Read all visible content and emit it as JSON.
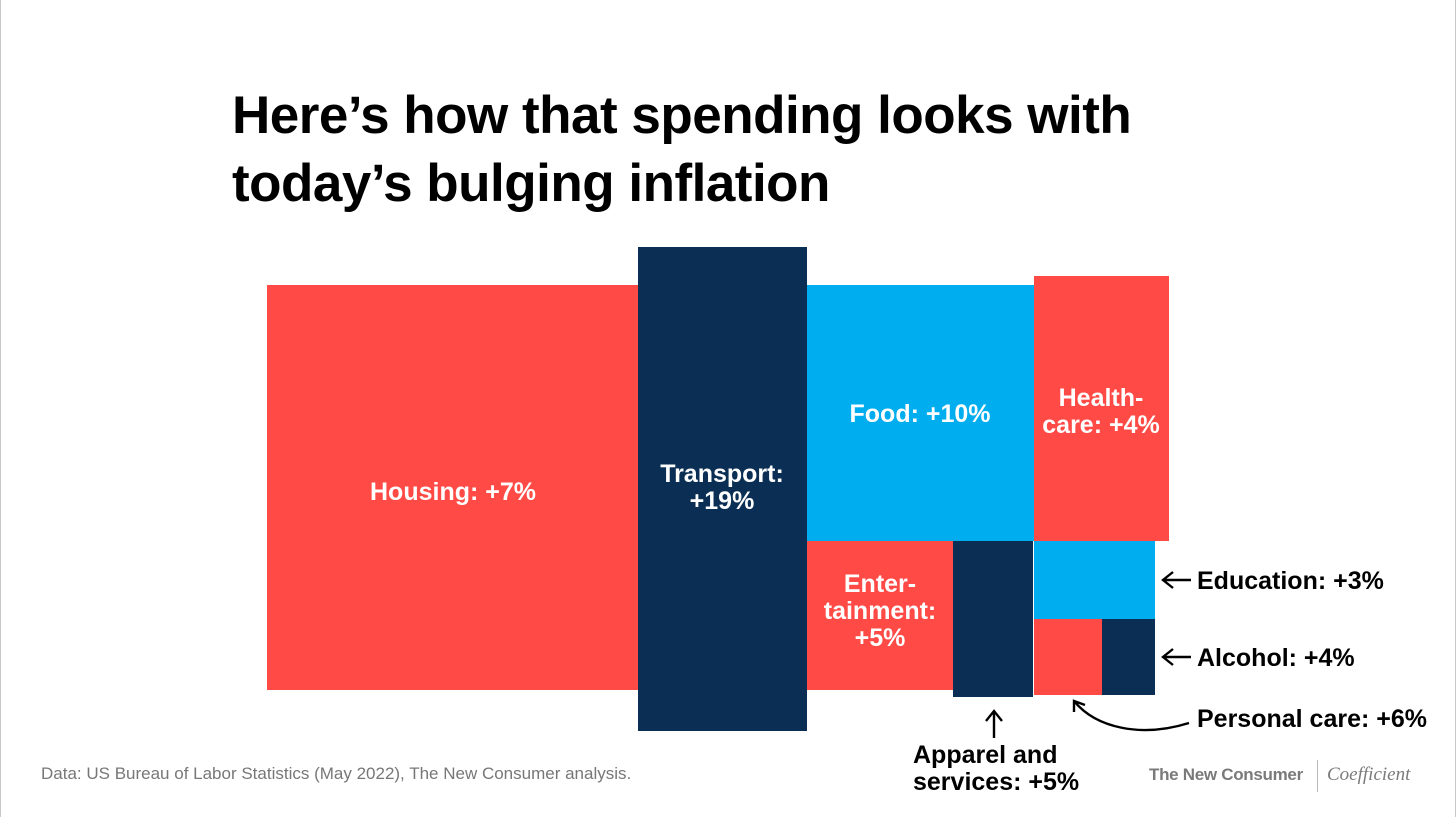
{
  "title_lines": [
    "Here’s how that spending looks with",
    "today’s bulging inflation"
  ],
  "source": "Data: US Bureau of Labor Statistics (May 2022), The New Consumer analysis.",
  "brand": {
    "publisher": "The New Consumer",
    "partner": "Coefficient"
  },
  "colors": {
    "red": "#ff4a45",
    "navy": "#0b2f54",
    "blue": "#00adee"
  },
  "chart_data": {
    "type": "treemap",
    "unit": "% price change (inflation) by spending category",
    "items": [
      {
        "name": "Housing",
        "label": [
          "Housing: +7%"
        ],
        "value": 7,
        "color": "red"
      },
      {
        "name": "Transport",
        "label": [
          "Transport:",
          "+19%"
        ],
        "value": 19,
        "color": "navy"
      },
      {
        "name": "Food",
        "label": [
          "Food: +10%"
        ],
        "value": 10,
        "color": "blue"
      },
      {
        "name": "Healthcare",
        "label": [
          "Health-",
          "care: +4%"
        ],
        "value": 4,
        "color": "red"
      },
      {
        "name": "Entertainment",
        "label": [
          "Enter-",
          "tainment:",
          "+5%"
        ],
        "value": 5,
        "color": "red"
      },
      {
        "name": "Apparel and services",
        "label": [
          "Apparel and",
          "services: +5%"
        ],
        "value": 5,
        "color": "navy"
      },
      {
        "name": "Education",
        "label": [
          "Education: +3%"
        ],
        "value": 3,
        "color": "blue"
      },
      {
        "name": "Personal care",
        "label": [
          "Personal care: +6%"
        ],
        "value": 6,
        "color": "red"
      },
      {
        "name": "Alcohol",
        "label": [
          "Alcohol: +4%"
        ],
        "value": 4,
        "color": "navy"
      }
    ]
  }
}
